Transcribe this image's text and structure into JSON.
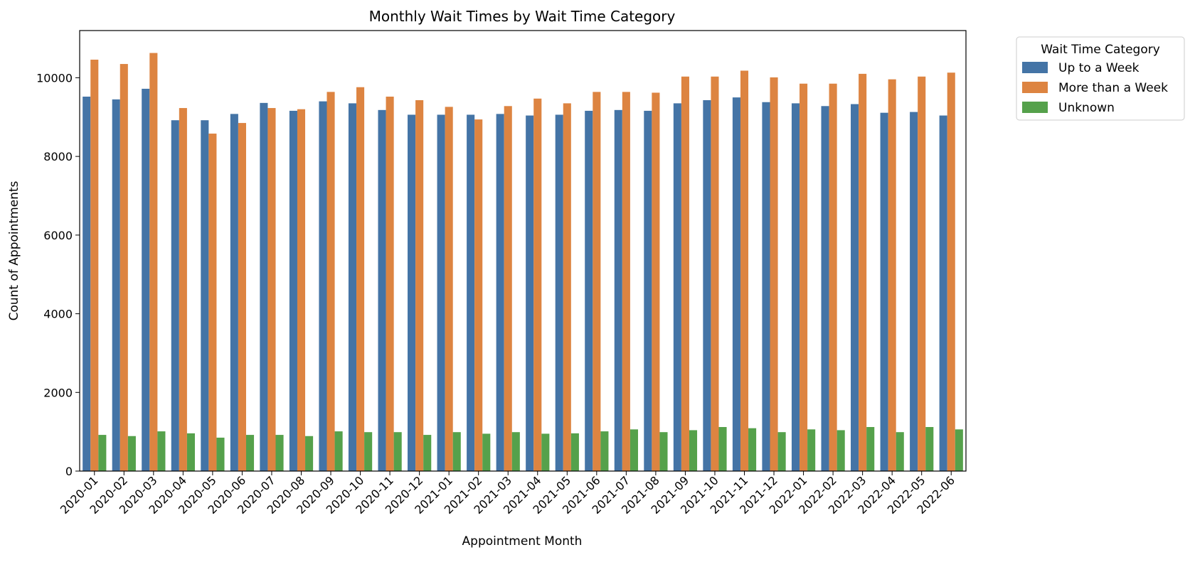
{
  "chart_data": {
    "type": "bar",
    "title": "Monthly Wait Times by Wait Time Category",
    "xlabel": "Appointment Month",
    "ylabel": "Count of Appointments",
    "ylim": [
      0,
      11200
    ],
    "yticks": [
      0,
      2000,
      4000,
      6000,
      8000,
      10000
    ],
    "grid": false,
    "legend": {
      "title": "Wait Time Category",
      "placement": "outside-top-right"
    },
    "categories": [
      "2020-01",
      "2020-02",
      "2020-03",
      "2020-04",
      "2020-05",
      "2020-06",
      "2020-07",
      "2020-08",
      "2020-09",
      "2020-10",
      "2020-11",
      "2020-12",
      "2021-01",
      "2021-02",
      "2021-03",
      "2021-04",
      "2021-05",
      "2021-06",
      "2021-07",
      "2021-08",
      "2021-09",
      "2021-10",
      "2021-11",
      "2021-12",
      "2022-01",
      "2022-02",
      "2022-03",
      "2022-04",
      "2022-05",
      "2022-06"
    ],
    "series": [
      {
        "name": "Up to a Week",
        "color": "#4474a6",
        "values": [
          9520,
          9450,
          9720,
          8920,
          8920,
          9080,
          9360,
          9160,
          9400,
          9350,
          9180,
          9060,
          9060,
          9060,
          9080,
          9040,
          9060,
          9160,
          9180,
          9160,
          9350,
          9430,
          9500,
          9380,
          9350,
          9280,
          9330,
          9110,
          9130,
          9040
        ]
      },
      {
        "name": "More than a Week",
        "color": "#dd8441",
        "values": [
          10460,
          10350,
          10630,
          9230,
          8580,
          8850,
          9230,
          9200,
          9640,
          9760,
          9520,
          9430,
          9260,
          8940,
          9280,
          9470,
          9350,
          9640,
          9640,
          9620,
          10030,
          10030,
          10180,
          10010,
          9850,
          9850,
          10100,
          9960,
          10030,
          10130
        ]
      },
      {
        "name": "Unknown",
        "color": "#55a14b",
        "values": [
          920,
          890,
          1010,
          960,
          850,
          920,
          920,
          890,
          1010,
          990,
          990,
          920,
          990,
          950,
          990,
          950,
          960,
          1010,
          1060,
          990,
          1040,
          1120,
          1090,
          990,
          1060,
          1040,
          1120,
          990,
          1120,
          1060
        ]
      }
    ]
  }
}
